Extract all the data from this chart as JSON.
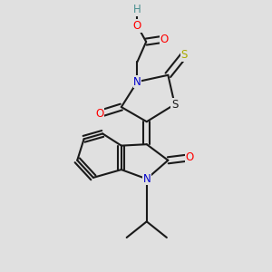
{
  "bg_color": "#e0e0e0",
  "bond_color": "#1a1a1a",
  "bond_width": 1.5,
  "dbo": 0.12,
  "atom_colors": {
    "O": "#ff0000",
    "N": "#0000cc",
    "S_thio": "#aaaa00",
    "S_ring": "#1a1a1a",
    "H": "#4a9090",
    "C": "#1a1a1a"
  },
  "font_size": 8.5,
  "fig_bg": "#e0e0e0"
}
